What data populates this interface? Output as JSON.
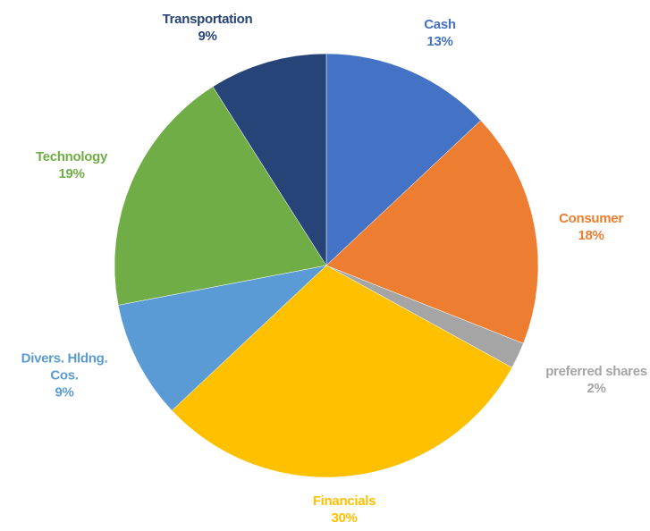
{
  "chart_data": {
    "type": "pie",
    "categories": [
      "Cash",
      "Consumer",
      "preferred shares",
      "Financials",
      "Divers. Hldng. Cos.",
      "Technology",
      "Transportation"
    ],
    "values": [
      13,
      18,
      2,
      30,
      9,
      19,
      9
    ],
    "value_labels": [
      "13%",
      "18%",
      "2%",
      "30%",
      "9%",
      "19%",
      "9%"
    ],
    "colors": [
      "#4472c4",
      "#ed7d31",
      "#a5a5a5",
      "#ffc000",
      "#5b9bd5",
      "#70ad47",
      "#264478"
    ]
  }
}
